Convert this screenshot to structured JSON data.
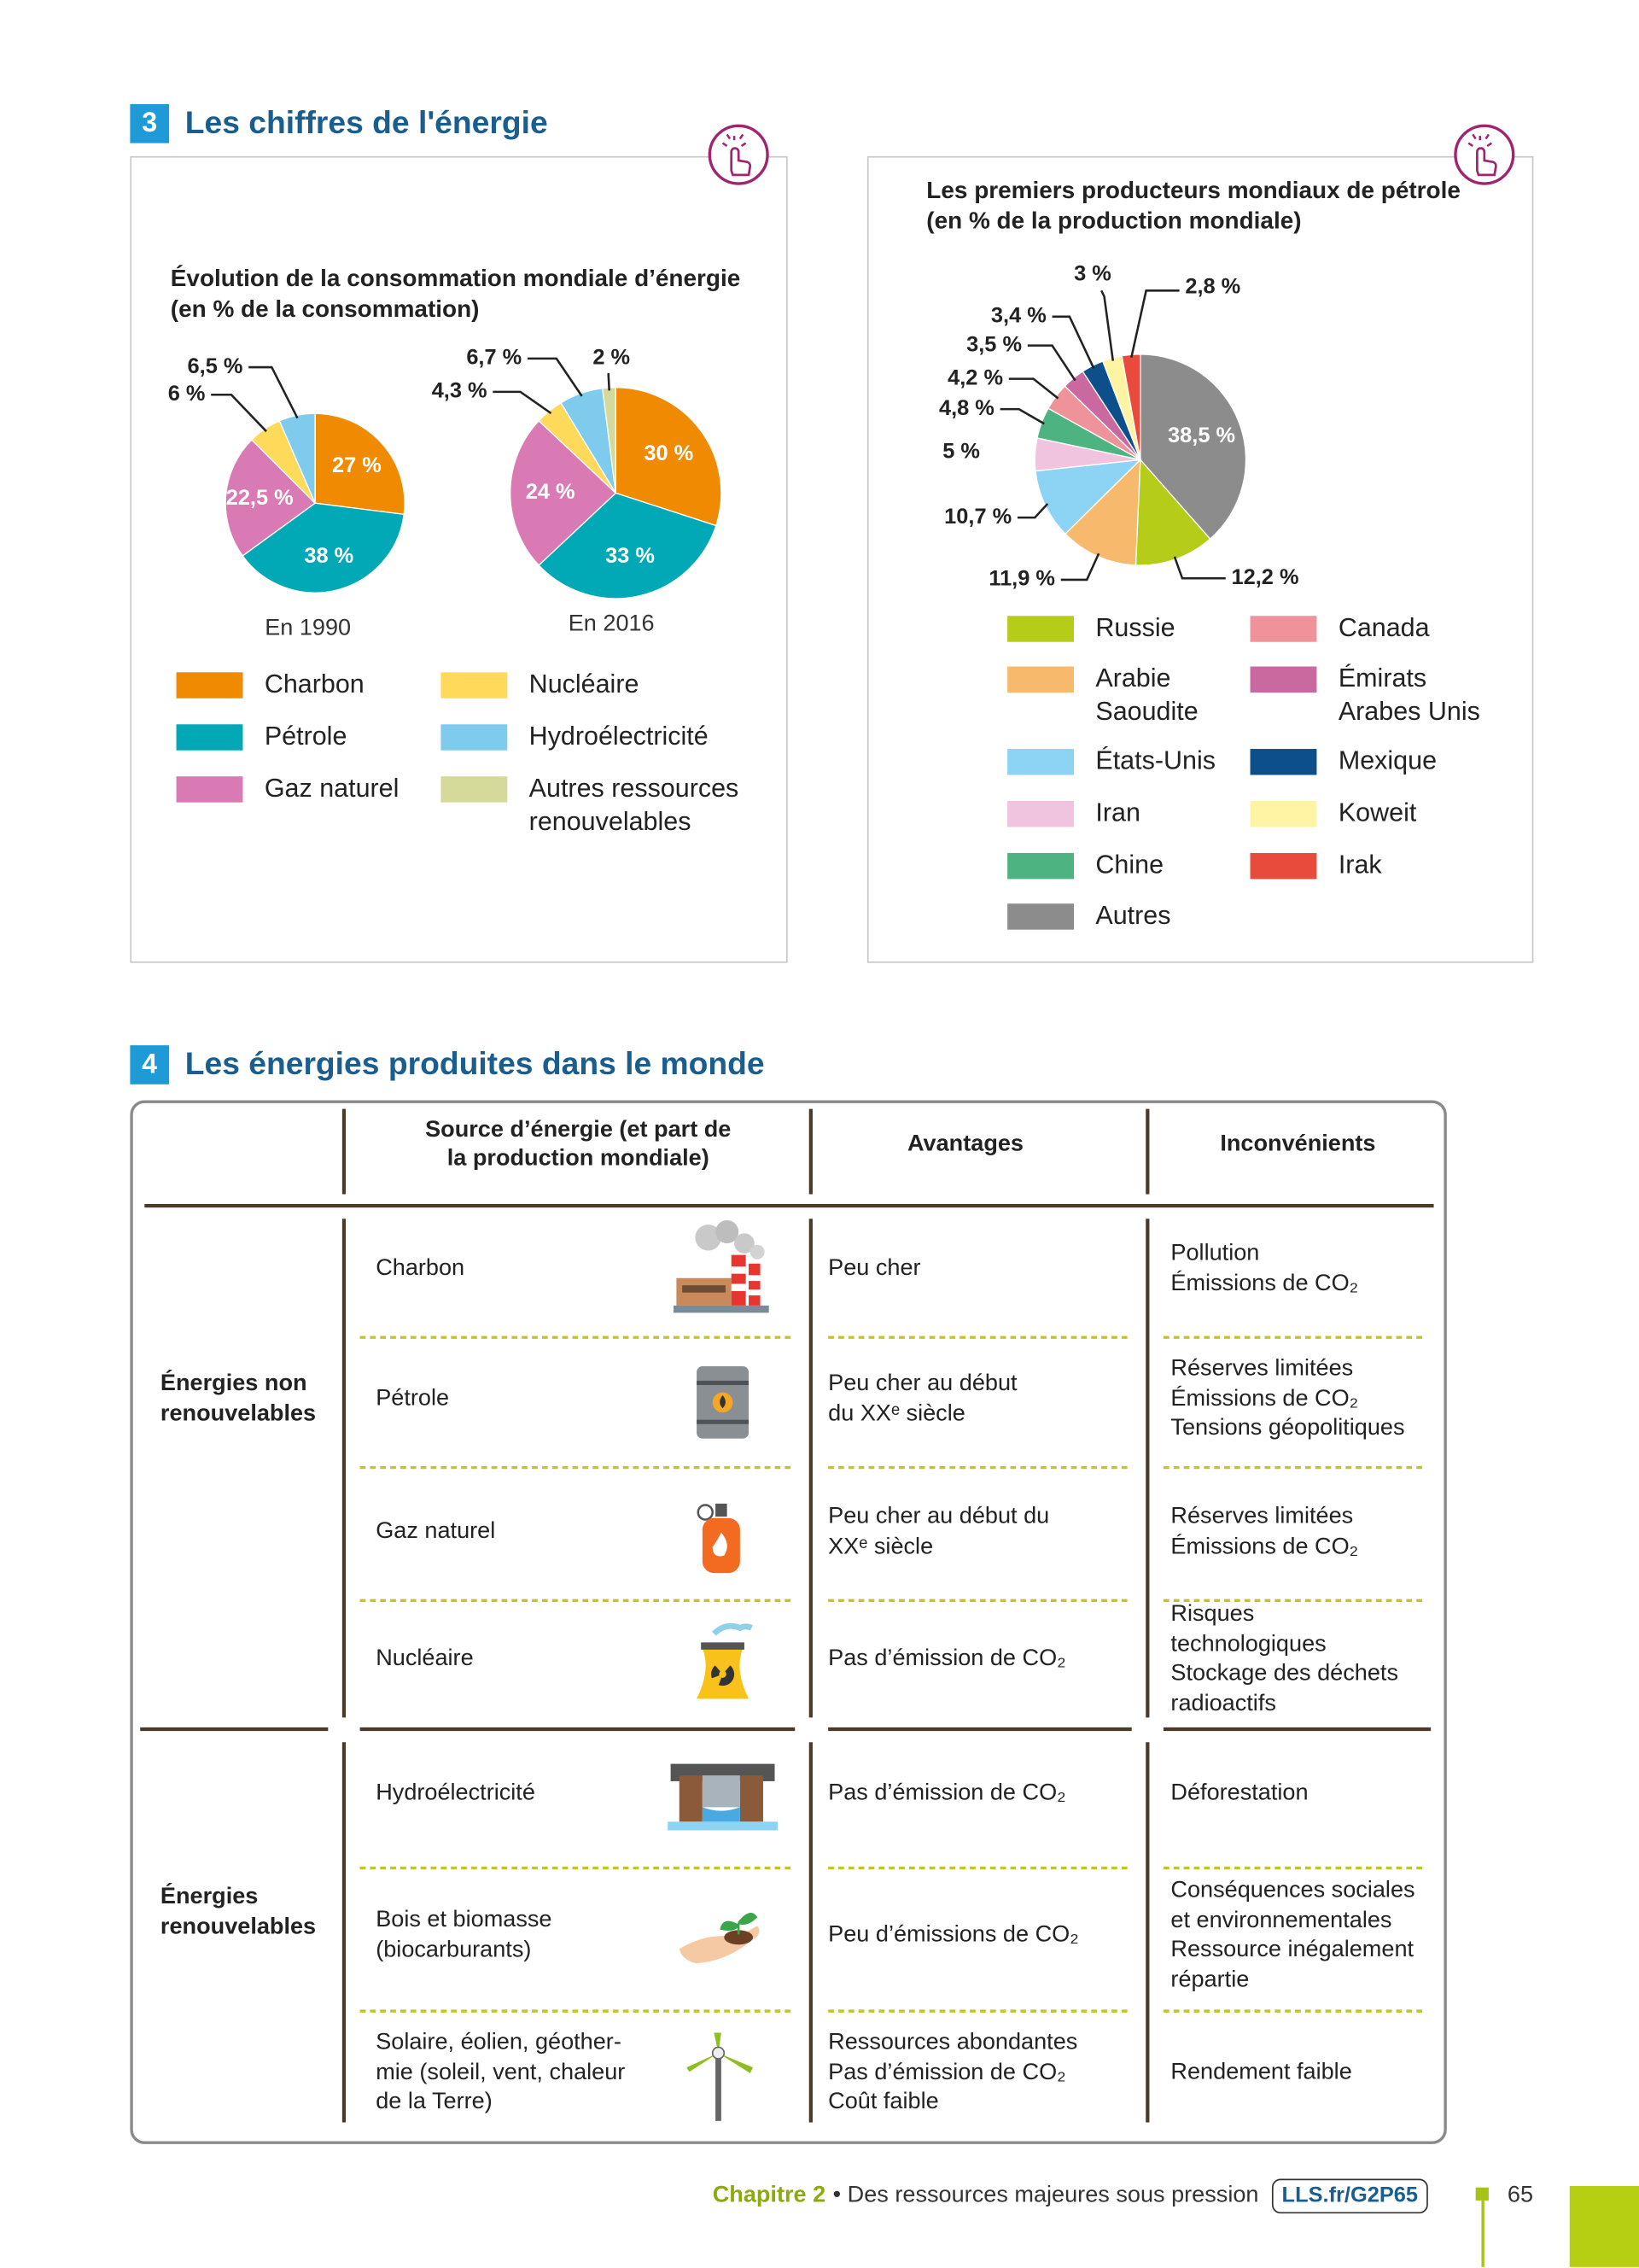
{
  "sections": [
    {
      "number": "3",
      "title": "Les chiffres de l'énergie"
    },
    {
      "number": "4",
      "title": "Les énergies produites dans le monde"
    }
  ],
  "chart_data": [
    {
      "type": "pie",
      "title": "Évolution de la consommation mondiale d’énergie\n(en % de la consommation)",
      "categories": [
        "Charbon",
        "Pétrole",
        "Gaz naturel",
        "Nucléaire",
        "Hydroélectricité",
        "Autres ressources renouvelables"
      ],
      "colors": [
        "#f08a00",
        "#00a9b5",
        "#d97ab5",
        "#ffd95a",
        "#7ecbee",
        "#d5d99a"
      ],
      "series": [
        {
          "name": "En 1990",
          "values": [
            27,
            38,
            22.5,
            6,
            6.5,
            null
          ],
          "value_labels": [
            "27 %",
            "38 %",
            "22,5 %",
            "6 %",
            "6,5 %",
            null
          ]
        },
        {
          "name": "En 2016",
          "values": [
            30,
            33,
            24,
            4.3,
            6.7,
            2
          ],
          "value_labels": [
            "30 %",
            "33 %",
            "24 %",
            "4,3 %",
            "6,7 %",
            "2 %"
          ]
        }
      ]
    },
    {
      "type": "pie",
      "title": "Les premiers producteurs mondiaux de pétrole\n(en % de la production mondiale)",
      "categories": [
        "Autres",
        "Russie",
        "Arabie Saoudite",
        "États-Unis",
        "Iran",
        "Chine",
        "Canada",
        "Émirats Arabes Unis",
        "Mexique",
        "Koweit",
        "Irak"
      ],
      "colors": [
        "#8c8c8c",
        "#b5cc18",
        "#f7b96b",
        "#8dd3f3",
        "#f0c3df",
        "#4db381",
        "#f0929a",
        "#c9699f",
        "#0d4f8b",
        "#fff4a3",
        "#e84a3b"
      ],
      "values": [
        38.5,
        12.2,
        11.9,
        10.7,
        5,
        4.8,
        4.2,
        3.5,
        3.4,
        3,
        2.8
      ],
      "value_labels": [
        "38,5 %",
        "12,2 %",
        "11,9 %",
        "10,7 %",
        "5 %",
        "4,8 %",
        "4,2 %",
        "3,5 %",
        "3,4 %",
        "3 %",
        "2,8 %"
      ]
    }
  ],
  "table": {
    "header": [
      "Source d’énergie (et part de\nla production mondiale)",
      "Avantages",
      "Inconvénients"
    ],
    "groups": [
      {
        "label": "Énergies non\nrenouvelables",
        "rows": [
          {
            "source": "Charbon",
            "advantages": "Peu cher",
            "drawbacks": "Pollution\nÉmissions de CO₂"
          },
          {
            "source": "Pétrole",
            "advantages": "Peu cher au début\ndu XXᵉ siècle",
            "drawbacks": "Réserves limitées\nÉmissions de CO₂\nTensions géopolitiques"
          },
          {
            "source": "Gaz naturel",
            "advantages": "Peu cher au début du\nXXᵉ siècle",
            "drawbacks": "Réserves limitées\nÉmissions de CO₂"
          },
          {
            "source": "Nucléaire",
            "advantages": "Pas d’émission de CO₂",
            "drawbacks": "Risques\ntechnologiques\nStockage des déchets\nradioactifs"
          }
        ]
      },
      {
        "label": "Énergies\nrenouvelables",
        "rows": [
          {
            "source": "Hydroélectricité",
            "advantages": "Pas d’émission de CO₂",
            "drawbacks": "Déforestation"
          },
          {
            "source": "Bois et biomasse\n(biocarburants)",
            "advantages": "Peu d’émissions de CO₂",
            "drawbacks": "Conséquences sociales\net environnementales\nRessource inégalement\nrépartie"
          },
          {
            "source": "Solaire, éolien, géother-\nmie (soleil, vent, chaleur\nde la Terre)",
            "advantages": "Ressources abondantes\nPas d’émission de CO₂\nCoût faible",
            "drawbacks": "Rendement faible"
          }
        ]
      }
    ]
  },
  "footer": {
    "chapter": "Chapitre 2",
    "subtitle": "• Des ressources majeures sous pression",
    "link": "LLS.fr/G2P65",
    "page": "65"
  }
}
